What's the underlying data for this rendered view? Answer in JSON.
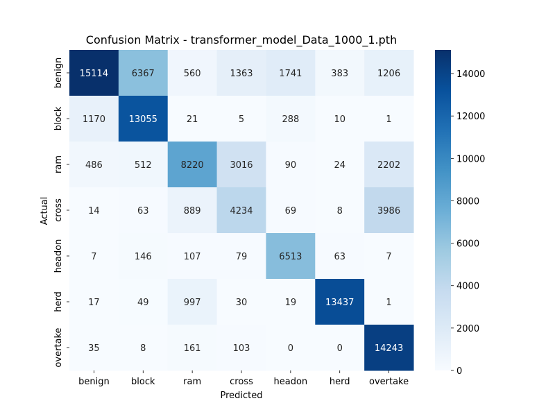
{
  "chart_data": {
    "type": "heatmap",
    "title": "Confusion Matrix - transformer_model_Data_1000_1.pth",
    "xlabel": "Predicted",
    "ylabel": "Actual",
    "x_categories": [
      "benign",
      "block",
      "ram",
      "cross",
      "headon",
      "herd",
      "overtake"
    ],
    "y_categories": [
      "benign",
      "block",
      "ram",
      "cross",
      "headon",
      "herd",
      "overtake"
    ],
    "values": [
      [
        15114,
        6367,
        560,
        1363,
        1741,
        383,
        1206
      ],
      [
        1170,
        13055,
        21,
        5,
        288,
        10,
        1
      ],
      [
        486,
        512,
        8220,
        3016,
        90,
        24,
        2202
      ],
      [
        14,
        63,
        889,
        4234,
        69,
        8,
        3986
      ],
      [
        7,
        146,
        107,
        79,
        6513,
        63,
        7
      ],
      [
        17,
        49,
        997,
        30,
        19,
        13437,
        1
      ],
      [
        35,
        8,
        161,
        103,
        0,
        0,
        14243
      ]
    ],
    "colormap": "Blues",
    "color_range": [
      0,
      15114
    ],
    "colorbar_ticks": [
      0,
      2000,
      4000,
      6000,
      8000,
      10000,
      12000,
      14000
    ]
  }
}
